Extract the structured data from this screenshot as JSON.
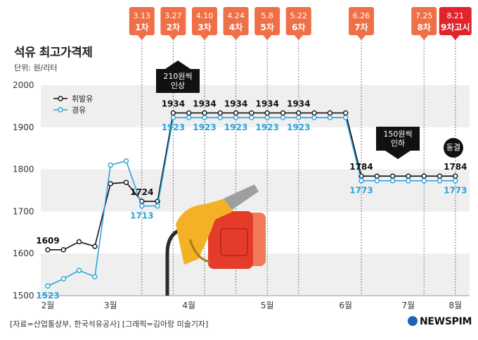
{
  "title": "석유 최고가격제",
  "unit_label": "단위: 원/리터",
  "source": "[자료=산업통상부, 한국석유공사] [그래픽=김아랑 미술기자]",
  "logo": "NEWSPIM",
  "callouts": {
    "raise_label": "210원씩\n인상",
    "cut_label": "150원씩\n인하",
    "freeze_label": "동결"
  },
  "colors": {
    "gasoline": "#111111",
    "diesel": "#29a3dc",
    "tag": "#ef6f47",
    "tag_final": "#e1232b",
    "band": "#efefef"
  },
  "chart_data": {
    "type": "line",
    "title": "석유 최고가격제",
    "ylabel": "단위: 원/리터",
    "ylim": [
      1500,
      2000
    ],
    "yticks": [
      1500,
      1600,
      1700,
      1800,
      1900,
      2000
    ],
    "month_labels": [
      "2월",
      "3월",
      "4월",
      "5월",
      "6월",
      "7월",
      "8월"
    ],
    "month_positions": [
      0,
      4,
      9,
      14,
      19,
      23,
      26
    ],
    "series": [
      {
        "name": "휘발유",
        "values": [
          1609,
          1609,
          1628,
          1617,
          1766,
          1769,
          1724,
          1724,
          1934,
          1934,
          1934,
          1934,
          1934,
          1934,
          1934,
          1934,
          1934,
          1934,
          1934,
          1934,
          1784,
          1784,
          1784,
          1784,
          1784,
          1784,
          1784
        ]
      },
      {
        "name": "경유",
        "values": [
          1523,
          1540,
          1560,
          1545,
          1810,
          1820,
          1713,
          1713,
          1923,
          1923,
          1923,
          1923,
          1923,
          1923,
          1923,
          1923,
          1923,
          1923,
          1923,
          1923,
          1773,
          1773,
          1773,
          1773,
          1773,
          1773,
          1773
        ]
      }
    ],
    "point_labels": {
      "gasoline": [
        {
          "index": 0,
          "text": "1609"
        },
        {
          "index": 6,
          "text": "1724"
        },
        {
          "index": 8,
          "text": "1934"
        },
        {
          "index": 10,
          "text": "1934"
        },
        {
          "index": 12,
          "text": "1934"
        },
        {
          "index": 14,
          "text": "1934"
        },
        {
          "index": 16,
          "text": "1934"
        },
        {
          "index": 20,
          "text": "1784"
        },
        {
          "index": 26,
          "text": "1784"
        }
      ],
      "diesel": [
        {
          "index": 0,
          "text": "1523"
        },
        {
          "index": 6,
          "text": "1713"
        },
        {
          "index": 8,
          "text": "1923"
        },
        {
          "index": 10,
          "text": "1923"
        },
        {
          "index": 12,
          "text": "1923"
        },
        {
          "index": 14,
          "text": "1923"
        },
        {
          "index": 16,
          "text": "1923"
        },
        {
          "index": 20,
          "text": "1773"
        },
        {
          "index": 26,
          "text": "1773"
        }
      ]
    },
    "rounds": [
      {
        "date": "3.13",
        "label": "1차",
        "index": 6
      },
      {
        "date": "3.27",
        "label": "2차",
        "index": 8
      },
      {
        "date": "4.10",
        "label": "3차",
        "index": 10
      },
      {
        "date": "4.24",
        "label": "4차",
        "index": 12
      },
      {
        "date": "5.8",
        "label": "5차",
        "index": 14
      },
      {
        "date": "5.22",
        "label": "6차",
        "index": 16
      },
      {
        "date": "6.26",
        "label": "7차",
        "index": 20
      },
      {
        "date": "7.25",
        "label": "8차",
        "index": 24
      },
      {
        "date": "8.21",
        "label": "9차고시",
        "index": 26
      }
    ],
    "legend_position": "top-left",
    "grid": "alternating horizontal bands"
  }
}
